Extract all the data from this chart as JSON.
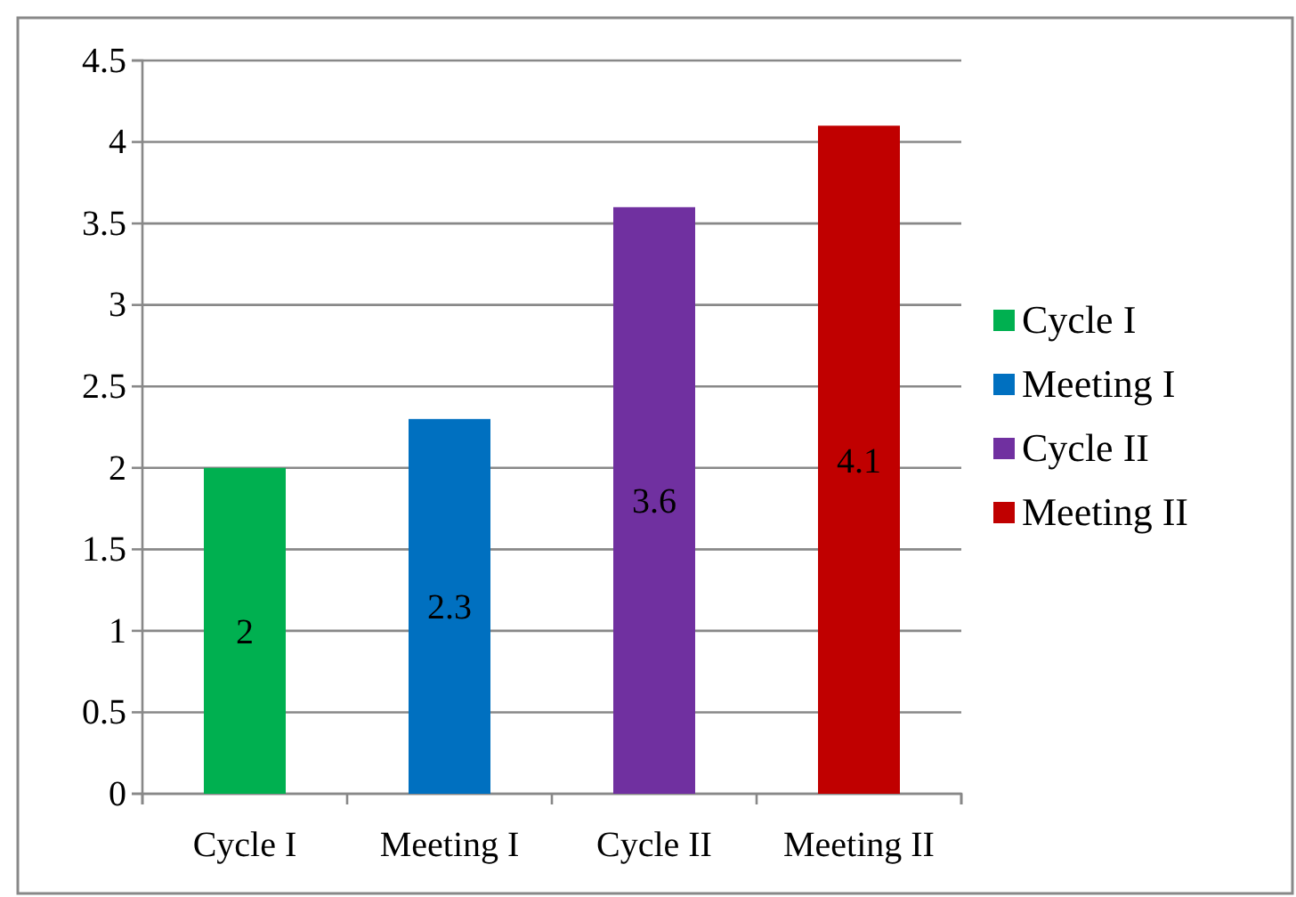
{
  "chart_data": {
    "type": "bar",
    "categories": [
      "Cycle I",
      "Meeting I",
      "Cycle II",
      "Meeting II"
    ],
    "series": [
      {
        "name": "Cycle I",
        "color": "#00b050",
        "values": [
          2,
          null,
          null,
          null
        ]
      },
      {
        "name": "Meeting I",
        "color": "#0070c0",
        "values": [
          null,
          2.3,
          null,
          null
        ]
      },
      {
        "name": "Cycle II",
        "color": "#7030a0",
        "values": [
          null,
          null,
          3.6,
          null
        ]
      },
      {
        "name": "Meeting II",
        "color": "#c00000",
        "values": [
          null,
          null,
          null,
          4.1
        ]
      }
    ],
    "ylim": [
      0,
      4.5
    ],
    "yticks": [
      0,
      0.5,
      1,
      1.5,
      2,
      2.5,
      3,
      3.5,
      4,
      4.5
    ],
    "grid": "y",
    "legend": "right",
    "data_labels": true
  }
}
